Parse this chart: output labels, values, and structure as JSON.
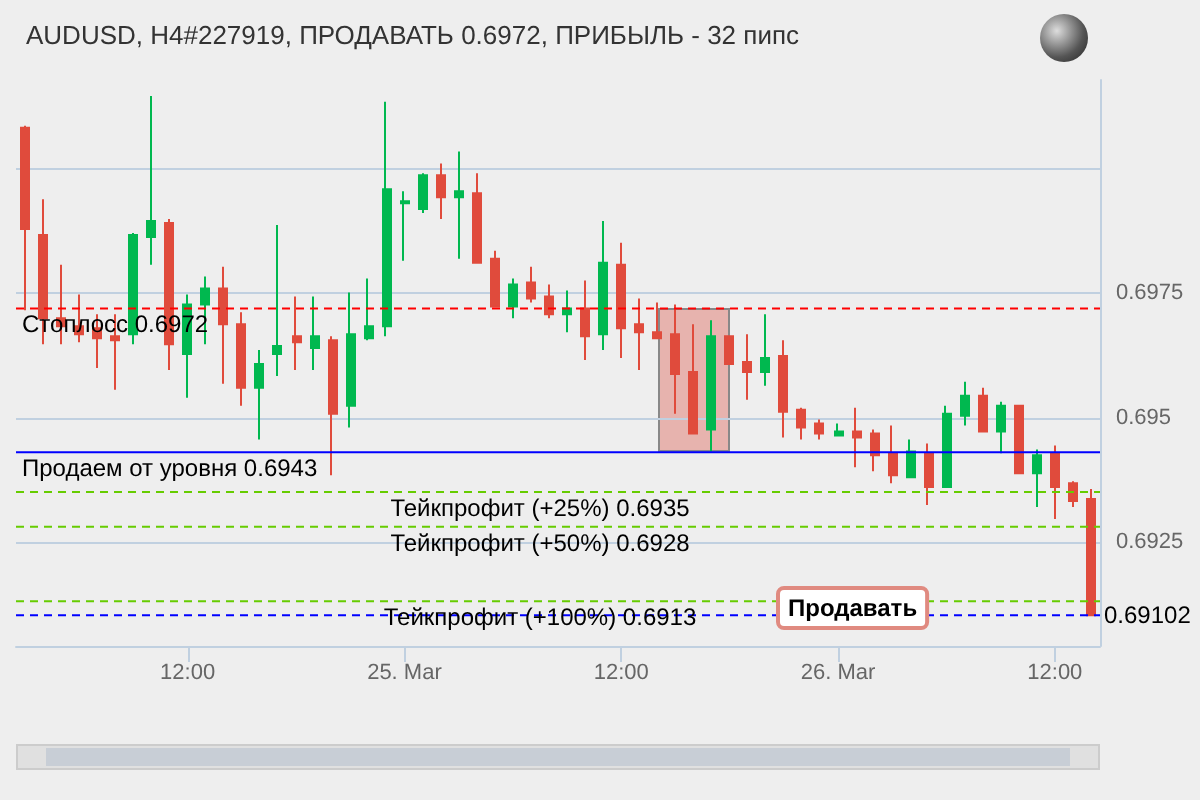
{
  "chart_data": {
    "type": "candlestick",
    "title": "AUDUSD, H4#227919, ПРОДАВАТЬ 0.6972, ПРИБЫЛЬ - 32 пипс",
    "categories": [
      null,
      null,
      null,
      null,
      null,
      null,
      null,
      null,
      null,
      "12:00",
      null,
      null,
      null,
      null,
      null,
      null,
      null,
      null,
      null,
      null,
      null,
      "25. Mar",
      null,
      null,
      null,
      null,
      null,
      null,
      null,
      null,
      null,
      null,
      null,
      "12:00",
      null,
      null,
      null,
      null,
      null,
      null,
      null,
      null,
      null,
      null,
      null,
      "26. Mar",
      null,
      null,
      null,
      null,
      null,
      null,
      null,
      null,
      null,
      null,
      null,
      "12:00",
      null,
      null
    ],
    "ohlc": [
      [
        0.70084,
        0.70088,
        0.69716,
        0.6988
      ],
      [
        0.69868,
        0.6994,
        0.69648,
        0.697
      ],
      [
        0.697,
        0.69808,
        0.69648,
        0.69684
      ],
      [
        0.69684,
        0.69748,
        0.69652,
        0.69668
      ],
      [
        0.6968,
        0.69708,
        0.696,
        0.6966
      ],
      [
        0.69664,
        0.69708,
        0.69556,
        0.69656
      ],
      [
        0.69668,
        0.69872,
        0.69648,
        0.69868
      ],
      [
        0.69864,
        0.70148,
        0.69808,
        0.69896
      ],
      [
        0.69892,
        0.699,
        0.69596,
        0.69648
      ],
      [
        0.69628,
        0.69748,
        0.6954,
        0.69728
      ],
      [
        0.69728,
        0.69784,
        0.69648,
        0.6976
      ],
      [
        0.6976,
        0.69804,
        0.69568,
        0.69688
      ],
      [
        0.69688,
        0.69712,
        0.69524,
        0.6956
      ],
      [
        0.6956,
        0.69636,
        0.69456,
        0.69608
      ],
      [
        0.69628,
        0.69888,
        0.69584,
        0.69644
      ],
      [
        0.69664,
        0.69744,
        0.69596,
        0.69652
      ],
      [
        0.6964,
        0.69744,
        0.69596,
        0.69664
      ],
      [
        0.69656,
        0.69664,
        0.69384,
        0.69508
      ],
      [
        0.69524,
        0.69752,
        0.6948,
        0.69668
      ],
      [
        0.6966,
        0.6978,
        0.69656,
        0.69684
      ],
      [
        0.69684,
        0.70136,
        0.69664,
        0.6996
      ],
      [
        0.69932,
        0.69956,
        0.69816,
        0.69936
      ],
      [
        0.6992,
        0.69992,
        0.69912,
        0.69988
      ],
      [
        0.69988,
        0.70012,
        0.699,
        0.69944
      ],
      [
        0.69944,
        0.70036,
        0.6982,
        0.69956
      ],
      [
        0.69952,
        0.69992,
        0.69812,
        0.69812
      ],
      [
        0.6982,
        0.69836,
        0.69724,
        0.69724
      ],
      [
        0.69724,
        0.6978,
        0.697,
        0.69768
      ],
      [
        0.69772,
        0.69804,
        0.69732,
        0.6974
      ],
      [
        0.69744,
        0.69768,
        0.697,
        0.69708
      ],
      [
        0.69708,
        0.69756,
        0.69672,
        0.6972
      ],
      [
        0.6972,
        0.69776,
        0.69616,
        0.69664
      ],
      [
        0.69668,
        0.69896,
        0.69636,
        0.69812
      ],
      [
        0.69808,
        0.69852,
        0.6962,
        0.6968
      ],
      [
        0.69688,
        0.6974,
        0.69596,
        0.69672
      ],
      [
        0.69672,
        0.69732,
        0.6966,
        0.6966
      ],
      [
        0.69668,
        0.69728,
        0.69508,
        0.69588
      ],
      [
        0.69592,
        0.69688,
        0.69468,
        0.69468
      ],
      [
        0.69476,
        0.69696,
        0.69432,
        0.69664
      ],
      [
        0.69664,
        0.69664,
        0.69608,
        0.69608
      ],
      [
        0.69612,
        0.69668,
        0.69536,
        0.69592
      ],
      [
        0.69592,
        0.69708,
        0.69564,
        0.6962
      ],
      [
        0.69624,
        0.69656,
        0.6946,
        0.69512
      ],
      [
        0.69516,
        0.6952,
        0.69456,
        0.6948
      ],
      [
        0.69488,
        0.69496,
        0.69456,
        0.69468
      ],
      [
        0.69464,
        0.69488,
        0.69464,
        0.69472
      ],
      [
        0.69472,
        0.6952,
        0.694,
        0.6946
      ],
      [
        0.69468,
        0.69476,
        0.69392,
        0.69424
      ],
      [
        0.69428,
        0.69484,
        0.69368,
        0.69384
      ],
      [
        0.6938,
        0.69456,
        0.6938,
        0.69432
      ],
      [
        0.69428,
        0.69448,
        0.69324,
        0.6936
      ],
      [
        0.6936,
        0.69524,
        0.6936,
        0.69508
      ],
      [
        0.69504,
        0.69572,
        0.69484,
        0.69544
      ],
      [
        0.69544,
        0.6956,
        0.69472,
        0.69472
      ],
      [
        0.69472,
        0.69532,
        0.69428,
        0.69524
      ],
      [
        0.69524,
        0.69524,
        0.69388,
        0.69388
      ],
      [
        0.69388,
        0.69436,
        0.6932,
        0.69424
      ],
      [
        0.69428,
        0.69444,
        0.69296,
        0.6936
      ],
      [
        0.69368,
        0.69372,
        0.6932,
        0.69332
      ],
      [
        0.69336,
        0.69356,
        0.69102,
        0.69102
      ]
    ],
    "ylim": [
      0.6904,
      0.7018
    ],
    "yticks": [
      {
        "value": 0.7,
        "label": null
      },
      0.6975,
      0.695,
      0.6925
    ],
    "grid": "y",
    "ref_lines": [
      {
        "axis": "y",
        "value": 0.6972,
        "label": "Стоплосс 0.6972",
        "color": "#ff0000",
        "line_style": "dashed"
      },
      {
        "axis": "y",
        "value": 0.6943,
        "label": "Продаем от уровня 0.6943",
        "color": "#0000ff",
        "line_style": "solid"
      },
      {
        "axis": "y",
        "value": 0.6935,
        "label": "Тейкпрофит (+25%) 0.6935",
        "color": "#66cc00",
        "line_style": "dashed"
      },
      {
        "axis": "y",
        "value": 0.6928,
        "label": "Тейкпрофит (+50%) 0.6928",
        "color": "#66cc00",
        "line_style": "dashed"
      },
      {
        "axis": "y",
        "value": 0.6913,
        "label": "Тейкпрофит (+100%) 0.6913",
        "color": "#66cc00",
        "line_style": "dashed"
      },
      {
        "axis": "y",
        "value": 0.69102,
        "label": "0.69102",
        "color": "#0000ff",
        "line_style": "dashed"
      }
    ],
    "annotations": [
      "Продавать"
    ]
  }
}
